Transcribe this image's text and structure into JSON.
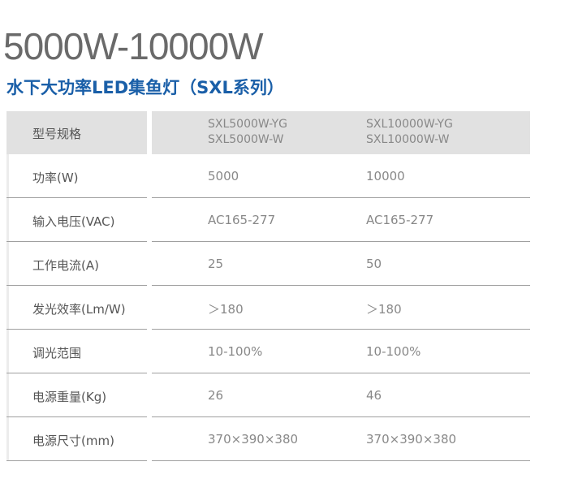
{
  "header": {
    "title": "5000W-10000W",
    "subtitle": "水下大功率LED集鱼灯（SXL系列）"
  },
  "table": {
    "head": {
      "label": "型号规格",
      "models": [
        [
          "SXL5000W-YG",
          "SXL5000W-W"
        ],
        [
          "SXL10000W-YG",
          "SXL10000W-W"
        ]
      ]
    },
    "rows": [
      [
        "功率(W)",
        "5000",
        "10000"
      ],
      [
        "输入电压(VAC)",
        "AC165-277",
        "AC165-277"
      ],
      [
        "工作电流(A)",
        "25",
        "50"
      ],
      [
        "发光效率(Lm/W)",
        "＞180",
        "＞180"
      ],
      [
        "调光范围",
        "10-100%",
        "10-100%"
      ],
      [
        "电源重量(Kg)",
        "26",
        "46"
      ],
      [
        "电源尺寸(mm)",
        "370×390×380",
        "370×390×380"
      ]
    ]
  }
}
